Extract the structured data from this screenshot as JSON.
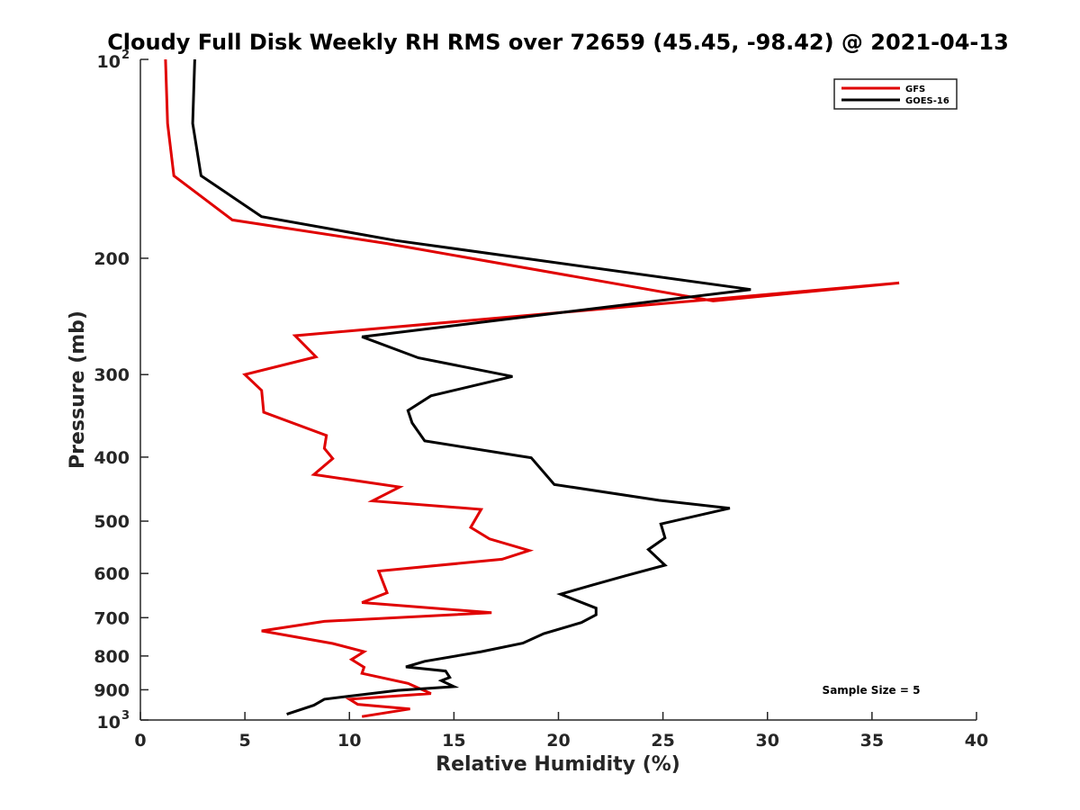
{
  "chart_data": {
    "type": "line",
    "title": "Cloudy Full Disk Weekly RH RMS over 72659 (45.45, -98.42) @ 2021-04-13",
    "xlabel": "Relative Humidity (%)",
    "ylabel": "Pressure (mb)",
    "xlim": [
      0,
      40
    ],
    "ylim": [
      100,
      1000
    ],
    "y_scale": "log",
    "y_reversed": true,
    "x_ticks": [
      "0",
      "5",
      "10",
      "15",
      "20",
      "25",
      "30",
      "35",
      "40"
    ],
    "y_ticks": [
      {
        "value": 100,
        "base": "10",
        "exp": "2"
      },
      {
        "value": 200,
        "label": "200"
      },
      {
        "value": 300,
        "label": "300"
      },
      {
        "value": 400,
        "label": "400"
      },
      {
        "value": 500,
        "label": "500"
      },
      {
        "value": 600,
        "label": "600"
      },
      {
        "value": 700,
        "label": "700"
      },
      {
        "value": 800,
        "label": "800"
      },
      {
        "value": 900,
        "label": "900"
      },
      {
        "value": 1000,
        "base": "10",
        "exp": "3"
      }
    ],
    "grid": false,
    "legend_position": "top-right",
    "annotation": "Sample Size = 5",
    "series": [
      {
        "name": "GFS",
        "color": "#e00000",
        "points": [
          [
            1.2,
            100
          ],
          [
            1.3,
            125
          ],
          [
            1.6,
            150
          ],
          [
            4.4,
            175
          ],
          [
            11.8,
            190
          ],
          [
            27.4,
            232
          ],
          [
            36.3,
            218
          ],
          [
            7.4,
            262
          ],
          [
            8.4,
            282
          ],
          [
            5.0,
            300
          ],
          [
            5.8,
            317
          ],
          [
            5.9,
            342
          ],
          [
            8.9,
            371
          ],
          [
            8.8,
            388
          ],
          [
            9.2,
            402
          ],
          [
            8.3,
            425
          ],
          [
            12.4,
            444
          ],
          [
            11.1,
            466
          ],
          [
            16.3,
            480
          ],
          [
            15.8,
            511
          ],
          [
            16.7,
            532
          ],
          [
            18.6,
            554
          ],
          [
            17.3,
            571
          ],
          [
            11.4,
            595
          ],
          [
            11.8,
            642
          ],
          [
            10.6,
            664
          ],
          [
            16.8,
            688
          ],
          [
            8.8,
            709
          ],
          [
            5.8,
            733
          ],
          [
            9.2,
            766
          ],
          [
            10.7,
            788
          ],
          [
            10.1,
            810
          ],
          [
            10.7,
            832
          ],
          [
            10.6,
            850
          ],
          [
            12.8,
            880
          ],
          [
            13.9,
            912
          ],
          [
            10.0,
            930
          ],
          [
            10.4,
            947
          ],
          [
            12.9,
            962
          ],
          [
            10.6,
            988
          ]
        ]
      },
      {
        "name": "GOES-16",
        "color": "#000000",
        "points": [
          [
            2.6,
            100
          ],
          [
            2.5,
            125
          ],
          [
            2.9,
            150
          ],
          [
            5.8,
            173
          ],
          [
            12.2,
            188
          ],
          [
            29.2,
            223
          ],
          [
            10.6,
            263
          ],
          [
            13.3,
            283
          ],
          [
            17.8,
            302
          ],
          [
            13.9,
            323
          ],
          [
            12.8,
            340
          ],
          [
            13.0,
            355
          ],
          [
            13.6,
            378
          ],
          [
            18.7,
            401
          ],
          [
            19.8,
            440
          ],
          [
            24.8,
            465
          ],
          [
            28.2,
            478
          ],
          [
            24.9,
            505
          ],
          [
            25.1,
            530
          ],
          [
            24.3,
            552
          ],
          [
            25.1,
            583
          ],
          [
            23.2,
            605
          ],
          [
            21.6,
            625
          ],
          [
            20.1,
            645
          ],
          [
            21.8,
            677
          ],
          [
            21.8,
            693
          ],
          [
            21.1,
            712
          ],
          [
            19.3,
            740
          ],
          [
            18.3,
            765
          ],
          [
            16.3,
            788
          ],
          [
            13.6,
            815
          ],
          [
            12.7,
            831
          ],
          [
            14.6,
            843
          ],
          [
            14.8,
            862
          ],
          [
            14.4,
            872
          ],
          [
            15.0,
            890
          ],
          [
            12.3,
            902
          ],
          [
            8.8,
            930
          ],
          [
            8.3,
            950
          ],
          [
            7.0,
            980
          ]
        ]
      }
    ]
  }
}
